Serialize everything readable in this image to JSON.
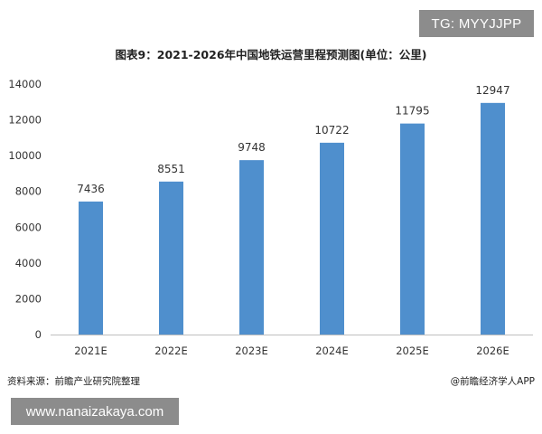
{
  "watermarks": {
    "top_right": "TG: MYYJJPP",
    "bottom_left": "www.nanaizakaya.com"
  },
  "chart_data": {
    "type": "bar",
    "title": "图表9：2021-2026年中国地铁运营里程预测图(单位：公里)",
    "categories": [
      "2021E",
      "2022E",
      "2023E",
      "2024E",
      "2025E",
      "2026E"
    ],
    "values": [
      7436,
      8551,
      9748,
      10722,
      11795,
      12947
    ],
    "ylim": [
      0,
      14000
    ],
    "yticks": [
      0,
      2000,
      4000,
      6000,
      8000,
      10000,
      12000,
      14000
    ],
    "xlabel": "",
    "ylabel": "",
    "bar_color": "#4f8fcd",
    "grid": false,
    "data_labels": true
  },
  "footer": {
    "source": "资料来源：前瞻产业研究院整理",
    "credit": "@前瞻经济学人APP"
  }
}
